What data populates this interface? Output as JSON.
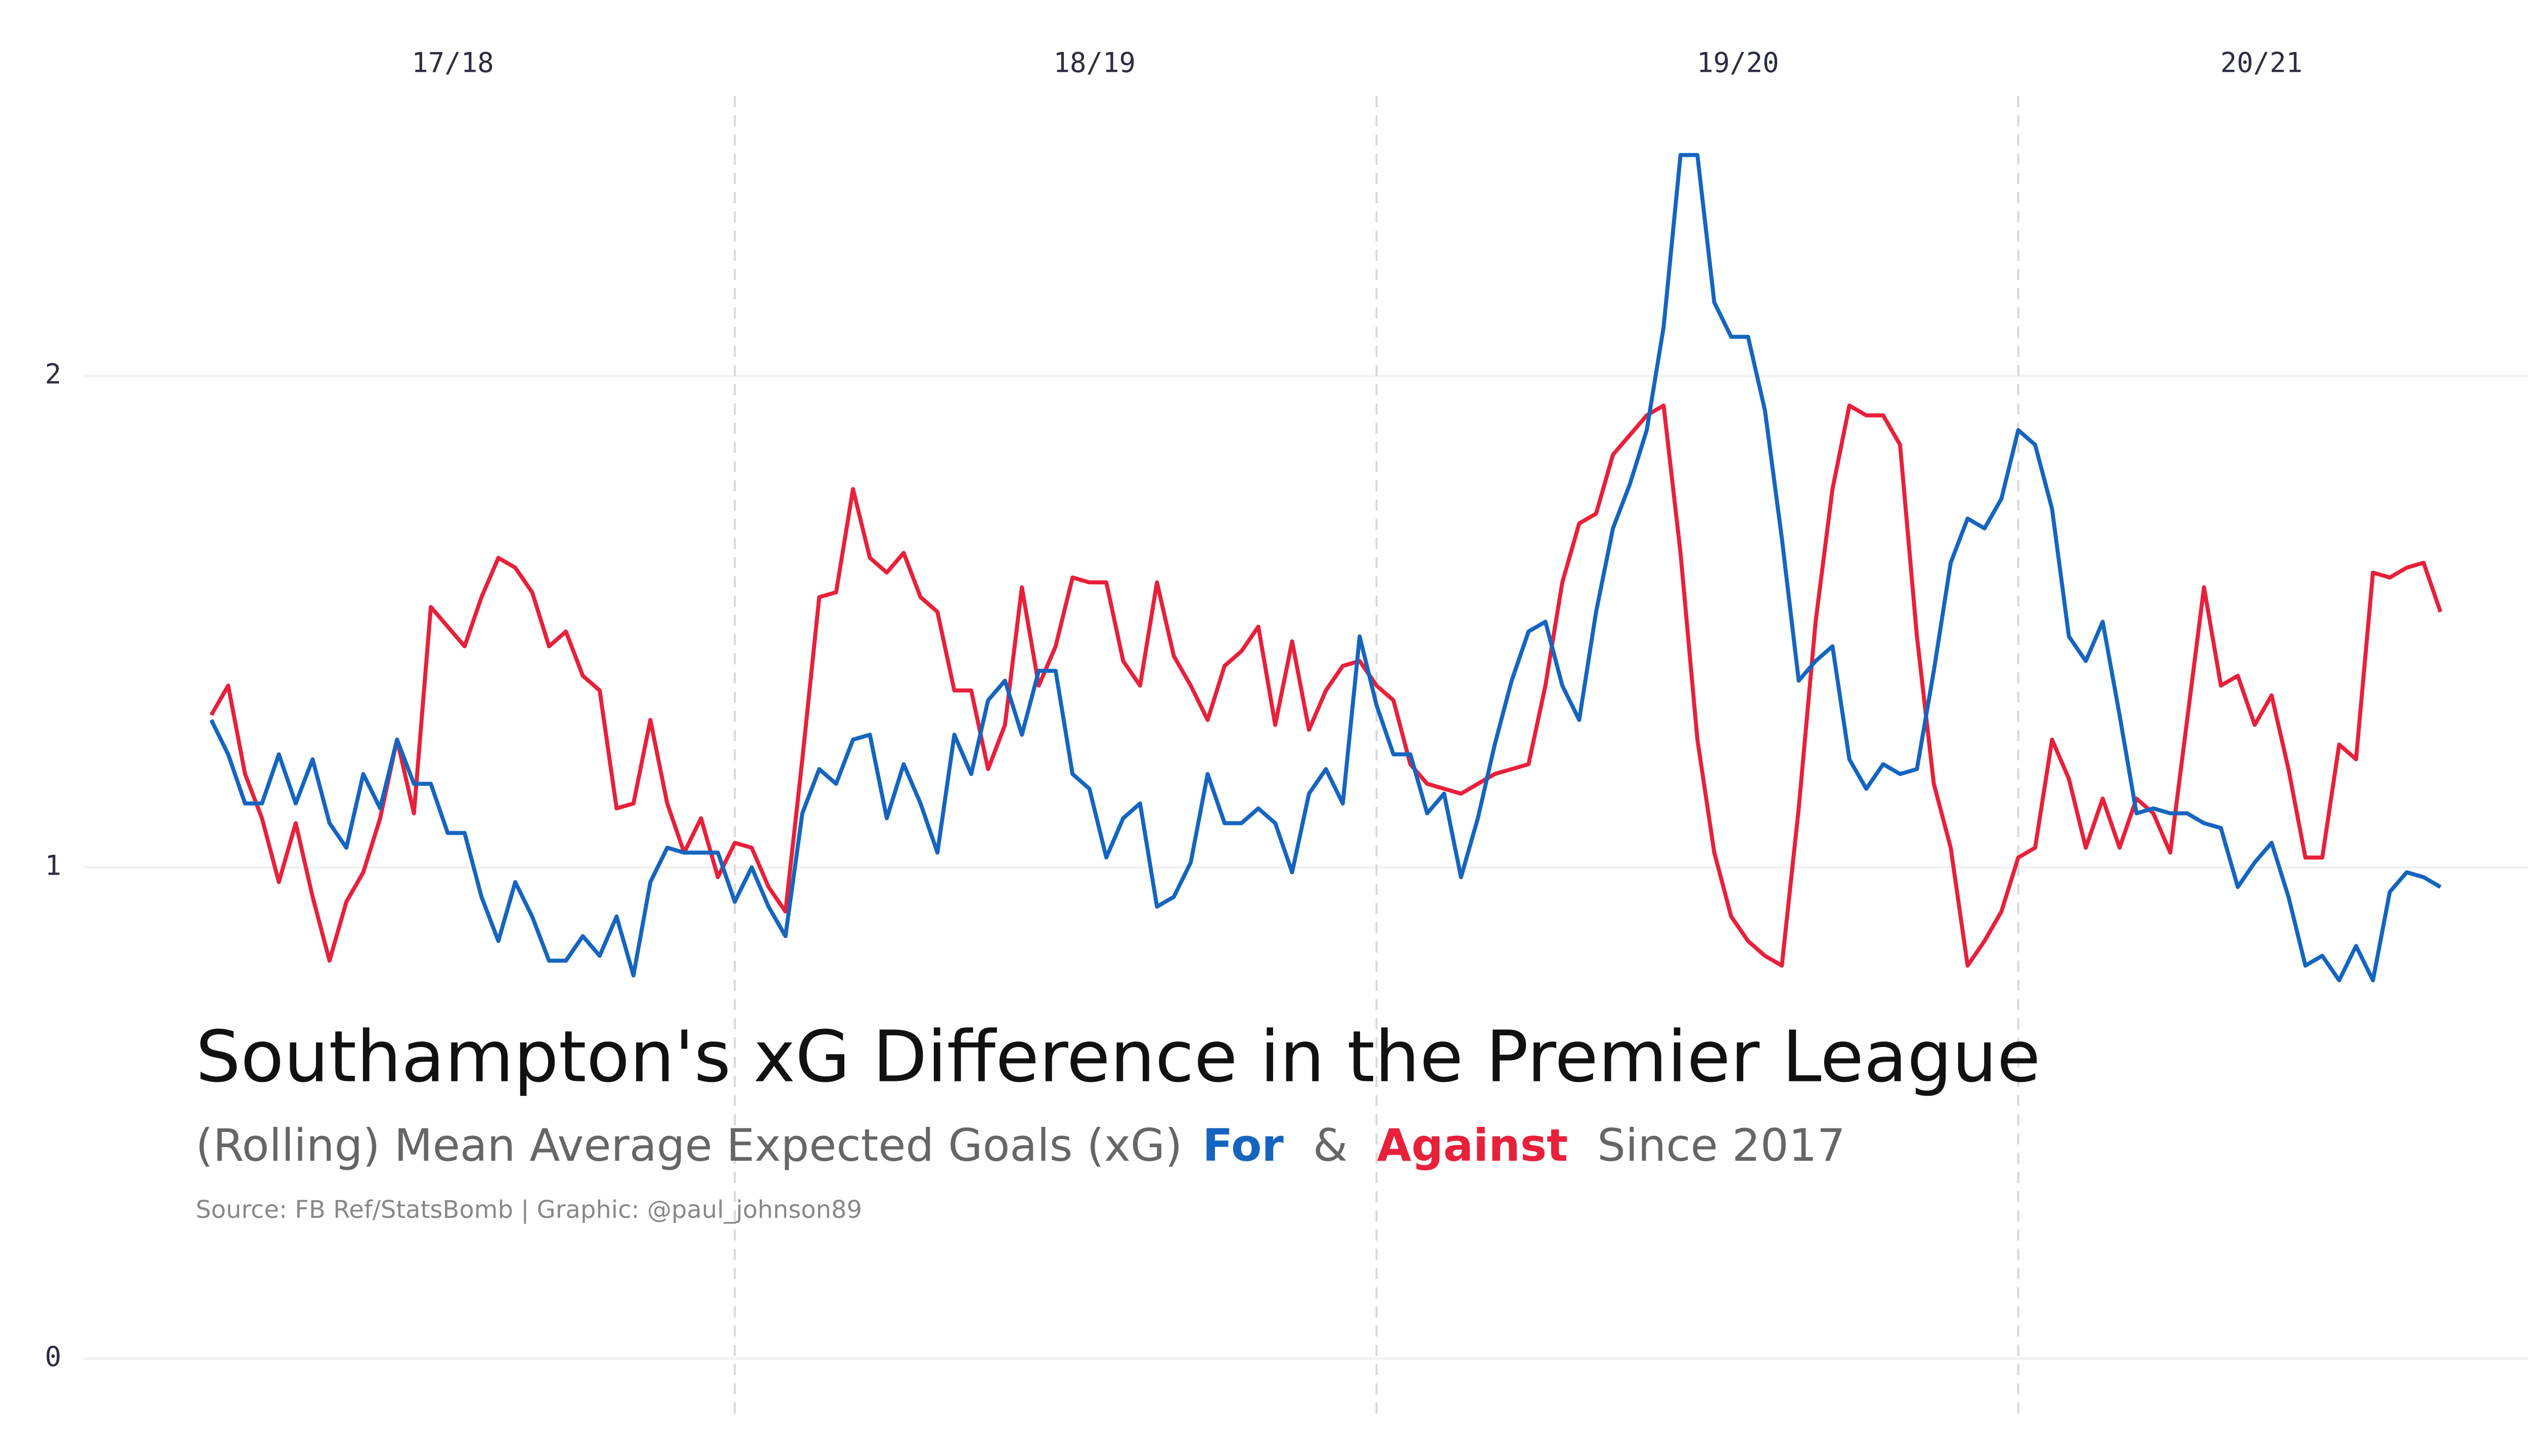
{
  "chart_data": {
    "type": "line",
    "title": "Southampton's xG Difference in the Premier League",
    "subtitle_parts": [
      "(Rolling) Mean Average Expected Goals (xG)",
      "&",
      "Since 2017"
    ],
    "source": "Source: FB Ref/StatsBomb | Graphic: @paul_johnson89",
    "x": [
      7,
      8,
      9,
      10,
      11,
      12,
      13,
      14,
      15,
      16,
      17,
      18,
      19,
      20,
      21,
      22,
      23,
      24,
      25,
      26,
      27,
      28,
      29,
      30,
      31,
      32,
      33,
      34,
      35,
      36,
      37,
      38,
      39,
      40,
      41,
      42,
      43,
      44,
      45,
      46,
      47,
      48,
      49,
      50,
      51,
      52,
      53,
      54,
      55,
      56,
      57,
      58,
      59,
      60,
      61,
      62,
      63,
      64,
      65,
      66,
      67,
      68,
      69,
      70,
      71,
      72,
      73,
      74,
      75,
      76,
      77,
      78,
      79,
      80,
      81,
      82,
      83,
      84,
      85,
      86,
      87,
      88,
      89,
      90,
      91,
      92,
      93,
      94,
      95,
      96,
      97,
      98,
      99,
      100,
      101,
      102,
      103,
      104,
      105,
      106,
      107,
      108,
      109,
      110,
      111,
      112,
      113,
      114,
      115,
      116,
      117,
      118,
      119,
      120,
      121,
      122,
      123,
      124,
      125,
      126,
      127,
      128,
      129,
      130,
      131,
      132,
      133,
      134,
      135,
      136,
      137,
      138,
      139
    ],
    "series": [
      {
        "name": "For",
        "color": "#1565c0",
        "values": [
          1.3,
          1.23,
          1.13,
          1.13,
          1.23,
          1.13,
          1.22,
          1.09,
          1.04,
          1.19,
          1.12,
          1.26,
          1.17,
          1.17,
          1.07,
          1.07,
          0.94,
          0.85,
          0.97,
          0.9,
          0.81,
          0.81,
          0.86,
          0.82,
          0.9,
          0.78,
          0.97,
          1.04,
          1.03,
          1.03,
          1.03,
          0.93,
          1.0,
          0.92,
          0.86,
          1.11,
          1.2,
          1.17,
          1.26,
          1.27,
          1.1,
          1.21,
          1.13,
          1.03,
          1.27,
          1.19,
          1.34,
          1.38,
          1.27,
          1.4,
          1.4,
          1.19,
          1.16,
          1.02,
          1.1,
          1.13,
          0.92,
          0.94,
          1.01,
          1.19,
          1.09,
          1.09,
          1.12,
          1.09,
          0.99,
          1.15,
          1.2,
          1.13,
          1.47,
          1.33,
          1.23,
          1.23,
          1.11,
          1.15,
          0.98,
          1.1,
          1.25,
          1.38,
          1.48,
          1.5,
          1.37,
          1.3,
          1.52,
          1.69,
          1.78,
          1.89,
          2.1,
          2.45,
          2.45,
          2.15,
          2.08,
          2.08,
          1.93,
          1.67,
          1.38,
          1.42,
          1.45,
          1.22,
          1.16,
          1.21,
          1.19,
          1.2,
          1.4,
          1.62,
          1.71,
          1.69,
          1.75,
          1.89,
          1.86,
          1.73,
          1.47,
          1.42,
          1.5,
          1.31,
          1.11,
          1.12,
          1.11,
          1.11,
          1.09,
          1.08,
          0.96,
          1.01,
          1.05,
          0.94,
          0.8,
          0.82,
          0.77,
          0.84,
          0.77,
          0.95,
          0.99,
          0.98,
          0.96
        ]
      },
      {
        "name": "Against",
        "color": "#e8203a",
        "values": [
          1.31,
          1.37,
          1.19,
          1.1,
          0.97,
          1.09,
          0.94,
          0.81,
          0.93,
          0.99,
          1.1,
          1.26,
          1.11,
          1.53,
          1.49,
          1.45,
          1.55,
          1.63,
          1.61,
          1.56,
          1.45,
          1.48,
          1.39,
          1.36,
          1.12,
          1.13,
          1.3,
          1.13,
          1.03,
          1.1,
          0.98,
          1.05,
          1.04,
          0.96,
          0.91,
          1.22,
          1.55,
          1.56,
          1.77,
          1.63,
          1.6,
          1.64,
          1.55,
          1.52,
          1.36,
          1.36,
          1.2,
          1.29,
          1.57,
          1.37,
          1.45,
          1.59,
          1.58,
          1.58,
          1.42,
          1.37,
          1.58,
          1.43,
          1.37,
          1.3,
          1.41,
          1.44,
          1.49,
          1.29,
          1.46,
          1.28,
          1.36,
          1.41,
          1.42,
          1.37,
          1.34,
          1.21,
          1.17,
          1.16,
          1.15,
          1.17,
          1.19,
          1.2,
          1.21,
          1.37,
          1.58,
          1.7,
          1.72,
          1.84,
          1.88,
          1.92,
          1.94,
          1.64,
          1.26,
          1.03,
          0.9,
          0.85,
          0.82,
          0.8,
          1.12,
          1.5,
          1.77,
          1.94,
          1.92,
          1.92,
          1.86,
          1.47,
          1.17,
          1.04,
          0.8,
          0.85,
          0.91,
          1.02,
          1.04,
          1.26,
          1.18,
          1.04,
          1.14,
          1.04,
          1.14,
          1.11,
          1.03,
          1.3,
          1.57,
          1.37,
          1.39,
          1.29,
          1.35,
          1.2,
          1.02,
          1.02,
          1.25,
          1.22,
          1.6,
          1.59,
          1.61,
          1.62,
          1.52
        ]
      }
    ],
    "xlim": [
      -0.6,
      145.8
    ],
    "xticks": [
      {
        "value": 21.3,
        "label": "17/18"
      },
      {
        "value": 59.3,
        "label": "18/19"
      },
      {
        "value": 97.4,
        "label": "19/20"
      },
      {
        "value": 128.4,
        "label": "20/21"
      }
    ],
    "season_breaks": [
      38,
      76,
      114
    ],
    "ylim": [
      -0.12,
      2.57
    ],
    "yticks": [
      0,
      1,
      2
    ],
    "grid": true
  }
}
